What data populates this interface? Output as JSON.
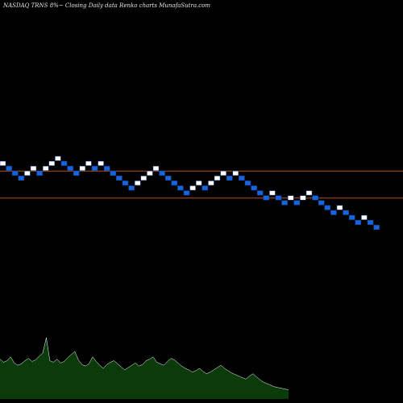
{
  "header": {
    "title": "NASDAQ TRNS 8%~  Closing Daily data  Renko  charts MunafaSutra.com"
  },
  "colors": {
    "background": "#000000",
    "up_brick": "#ffffff",
    "down_brick": "#1565e0",
    "brick_border": "#1b3f8a",
    "level_line": "#b0541e",
    "volume_fill": "#0b3a0b",
    "volume_line": "#ffffff"
  },
  "chart_data": {
    "type": "renko",
    "title": "NASDAQ TRNS 8%~  Closing Daily data  Renko  charts MunafaSutra.com",
    "bricks": [
      {
        "dir": "up",
        "level": 10
      },
      {
        "dir": "down",
        "level": 9
      },
      {
        "dir": "down",
        "level": 8
      },
      {
        "dir": "down",
        "level": 7
      },
      {
        "dir": "up",
        "level": 8
      },
      {
        "dir": "up",
        "level": 9
      },
      {
        "dir": "down",
        "level": 8
      },
      {
        "dir": "up",
        "level": 9
      },
      {
        "dir": "up",
        "level": 10
      },
      {
        "dir": "up",
        "level": 11
      },
      {
        "dir": "down",
        "level": 10
      },
      {
        "dir": "down",
        "level": 9
      },
      {
        "dir": "down",
        "level": 8
      },
      {
        "dir": "up",
        "level": 9
      },
      {
        "dir": "up",
        "level": 10
      },
      {
        "dir": "down",
        "level": 9
      },
      {
        "dir": "up",
        "level": 10
      },
      {
        "dir": "down",
        "level": 9
      },
      {
        "dir": "down",
        "level": 8
      },
      {
        "dir": "down",
        "level": 7
      },
      {
        "dir": "down",
        "level": 6
      },
      {
        "dir": "down",
        "level": 5
      },
      {
        "dir": "up",
        "level": 6
      },
      {
        "dir": "up",
        "level": 7
      },
      {
        "dir": "up",
        "level": 8
      },
      {
        "dir": "up",
        "level": 9
      },
      {
        "dir": "down",
        "level": 8
      },
      {
        "dir": "down",
        "level": 7
      },
      {
        "dir": "down",
        "level": 6
      },
      {
        "dir": "down",
        "level": 5
      },
      {
        "dir": "down",
        "level": 4
      },
      {
        "dir": "up",
        "level": 5
      },
      {
        "dir": "up",
        "level": 6
      },
      {
        "dir": "down",
        "level": 5
      },
      {
        "dir": "up",
        "level": 6
      },
      {
        "dir": "up",
        "level": 7
      },
      {
        "dir": "up",
        "level": 8
      },
      {
        "dir": "down",
        "level": 7
      },
      {
        "dir": "up",
        "level": 8
      },
      {
        "dir": "down",
        "level": 7
      },
      {
        "dir": "down",
        "level": 6
      },
      {
        "dir": "down",
        "level": 5
      },
      {
        "dir": "down",
        "level": 4
      },
      {
        "dir": "down",
        "level": 3
      },
      {
        "dir": "up",
        "level": 4
      },
      {
        "dir": "down",
        "level": 3
      },
      {
        "dir": "down",
        "level": 2
      },
      {
        "dir": "up",
        "level": 3
      },
      {
        "dir": "down",
        "level": 2
      },
      {
        "dir": "up",
        "level": 3
      },
      {
        "dir": "up",
        "level": 4
      },
      {
        "dir": "down",
        "level": 3
      },
      {
        "dir": "down",
        "level": 2
      },
      {
        "dir": "down",
        "level": 1
      },
      {
        "dir": "down",
        "level": 0
      },
      {
        "dir": "up",
        "level": 1
      },
      {
        "dir": "down",
        "level": 0
      },
      {
        "dir": "down",
        "level": -1
      },
      {
        "dir": "down",
        "level": -2
      },
      {
        "dir": "up",
        "level": -1
      },
      {
        "dir": "down",
        "level": -2
      },
      {
        "dir": "down",
        "level": -3
      }
    ],
    "level_lines": [
      8.5,
      3.0
    ],
    "volume": [
      0.52,
      0.48,
      0.5,
      0.55,
      0.47,
      0.44,
      0.46,
      0.5,
      0.53,
      0.49,
      0.51,
      0.56,
      0.6,
      0.8,
      0.5,
      0.48,
      0.52,
      0.47,
      0.49,
      0.54,
      0.58,
      0.62,
      0.51,
      0.45,
      0.43,
      0.46,
      0.55,
      0.49,
      0.44,
      0.4,
      0.45,
      0.48,
      0.5,
      0.46,
      0.42,
      0.38,
      0.41,
      0.44,
      0.47,
      0.43,
      0.45,
      0.5,
      0.52,
      0.55,
      0.48,
      0.46,
      0.44,
      0.49,
      0.53,
      0.51,
      0.47,
      0.43,
      0.4,
      0.38,
      0.35,
      0.37,
      0.4,
      0.36,
      0.33,
      0.35,
      0.38,
      0.41,
      0.44,
      0.4,
      0.37,
      0.34,
      0.32,
      0.3,
      0.28,
      0.26,
      0.3,
      0.33,
      0.29,
      0.25,
      0.22,
      0.2,
      0.18,
      0.16,
      0.15,
      0.14,
      0.13,
      0.12
    ]
  }
}
